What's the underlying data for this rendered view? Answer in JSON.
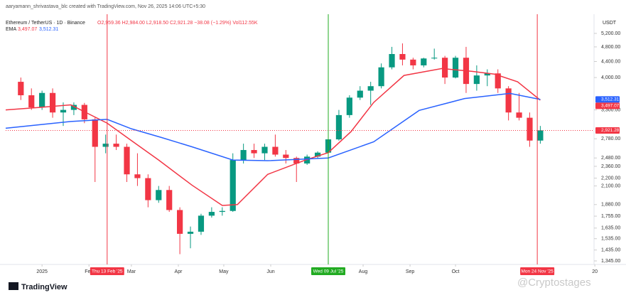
{
  "chart_data": {
    "type": "candlestick",
    "credit": "aaryamann_shrivastava_blc created with TradingView.com, Nov 26, 2025 14:06 UTC+5:30",
    "title": "Ethereum / TetherUS · 1D · Binance",
    "ohlc_text": "O2,959.36 H2,984.00 L2,918.50 C2,921.28 −38.08 (−1.29%) Vol112.55K",
    "indicator": "EMA",
    "currency": "USDT",
    "brand": "TradingView",
    "watermark": "@Cryptostages",
    "log_scale": true,
    "grid": false,
    "up_color": "#089981",
    "down_color": "#f23645",
    "xlim": [
      -23,
      365
    ],
    "ylim": [
      1317,
      5470
    ],
    "xticks": [
      {
        "value": 1,
        "label": "2025"
      },
      {
        "value": 32,
        "label": "Feb"
      },
      {
        "value": 60,
        "label": "Mar"
      },
      {
        "value": 91,
        "label": "Apr"
      },
      {
        "value": 121,
        "label": "May"
      },
      {
        "value": 152,
        "label": "Jun"
      },
      {
        "value": 213,
        "label": "Aug"
      },
      {
        "value": 244,
        "label": "Sep"
      },
      {
        "value": 274,
        "label": "Oct"
      },
      {
        "value": 366,
        "label": "20"
      }
    ],
    "yticks": [
      {
        "value": 5200,
        "label": "5,200.00"
      },
      {
        "value": 4800,
        "label": "4,800.00"
      },
      {
        "value": 4400,
        "label": "4,400.00"
      },
      {
        "value": 4000,
        "label": "4,000.00"
      },
      {
        "value": 3300,
        "label": "3,300.00"
      },
      {
        "value": 2780,
        "label": "2,780.00"
      },
      {
        "value": 2480,
        "label": "2,480.00"
      },
      {
        "value": 2360,
        "label": "2,360.00"
      },
      {
        "value": 2200,
        "label": "2,200.00"
      },
      {
        "value": 2100,
        "label": "2,100.00"
      },
      {
        "value": 1880,
        "label": "1,880.00"
      },
      {
        "value": 1755,
        "label": "1,755.00"
      },
      {
        "value": 1635,
        "label": "1,635.00"
      },
      {
        "value": 1535,
        "label": "1,535.00"
      },
      {
        "value": 1435,
        "label": "1,435.00"
      },
      {
        "value": 1345,
        "label": "1,345.00"
      }
    ],
    "candles": {
      "x": [
        -13,
        -6,
        1,
        8,
        15,
        22,
        29,
        36,
        43,
        50,
        57,
        64,
        71,
        78,
        85,
        92,
        99,
        106,
        113,
        120,
        127,
        134,
        141,
        148,
        155,
        162,
        169,
        176,
        183,
        190,
        197,
        204,
        211,
        218,
        225,
        232,
        239,
        246,
        253,
        260,
        267,
        274,
        281,
        288,
        295,
        302,
        309,
        316,
        323,
        330
      ],
      "open": [
        3900,
        3600,
        3350,
        3650,
        3250,
        3300,
        3400,
        3120,
        2650,
        2700,
        2650,
        2250,
        2200,
        1930,
        2050,
        1820,
        1580,
        1600,
        1760,
        1800,
        1810,
        2450,
        2600,
        2550,
        2650,
        2530,
        2480,
        2400,
        2500,
        2560,
        2770,
        3200,
        3550,
        3700,
        3800,
        4250,
        4600,
        4450,
        4300,
        4480,
        4500,
        4000,
        4500,
        3850,
        4050,
        4100,
        3750,
        3250,
        3150,
        2750
      ],
      "high": [
        4000,
        3750,
        3700,
        3750,
        3450,
        3450,
        3440,
        3150,
        2850,
        2850,
        2700,
        2550,
        2250,
        2100,
        2100,
        1850,
        1650,
        1780,
        1850,
        1850,
        2550,
        2700,
        2700,
        2700,
        2850,
        2600,
        2500,
        2530,
        2580,
        2800,
        3300,
        3600,
        3800,
        3900,
        4350,
        4800,
        4900,
        4500,
        4500,
        4750,
        4550,
        4550,
        4800,
        4300,
        4200,
        4200,
        3800,
        3650,
        3250,
        3000
      ],
      "low": [
        3500,
        3300,
        3300,
        3150,
        3000,
        3200,
        3050,
        2150,
        2550,
        2600,
        2150,
        2100,
        1850,
        1900,
        1800,
        1400,
        1450,
        1570,
        1740,
        1760,
        1800,
        2400,
        2480,
        2450,
        2500,
        2400,
        2150,
        2380,
        2470,
        2550,
        2750,
        3150,
        3500,
        3400,
        3750,
        4200,
        4300,
        4200,
        4250,
        4450,
        3850,
        3980,
        3650,
        3700,
        3800,
        3650,
        3100,
        3100,
        2650,
        2700
      ],
      "close": [
        3600,
        3350,
        3650,
        3250,
        3300,
        3400,
        3120,
        2650,
        2700,
        2650,
        2250,
        2200,
        1930,
        2050,
        1820,
        1580,
        1600,
        1760,
        1800,
        1810,
        2450,
        2600,
        2550,
        2650,
        2530,
        2480,
        2400,
        2500,
        2560,
        2770,
        3200,
        3550,
        3700,
        3800,
        4250,
        4600,
        4450,
        4300,
        4480,
        4500,
        4000,
        4500,
        3850,
        4050,
        4100,
        3750,
        3250,
        3150,
        2750,
        2921.28
      ]
    },
    "ema": [
      {
        "color": "#f23645",
        "x": [
          -23,
          0,
          20,
          44,
          60,
          78,
          100,
          120,
          130,
          150,
          175,
          190,
          205,
          220,
          240,
          265,
          285,
          300,
          315,
          330
        ],
        "values": [
          3300,
          3350,
          3400,
          3050,
          2750,
          2450,
          2110,
          1870,
          1880,
          2250,
          2450,
          2560,
          2900,
          3450,
          4050,
          4220,
          4150,
          4080,
          3900,
          3497.07
        ]
      },
      {
        "color": "#2962ff",
        "x": [
          -23,
          20,
          44,
          60,
          80,
          100,
          127,
          150,
          190,
          220,
          250,
          280,
          310,
          330
        ],
        "values": [
          2960,
          3080,
          3120,
          2950,
          2800,
          2650,
          2450,
          2440,
          2480,
          2730,
          3290,
          3530,
          3640,
          3512.31
        ]
      }
    ],
    "ema_labels": [
      "3,497.07",
      "3,512.31"
    ],
    "price_tags": [
      {
        "value": 3512.31,
        "label": "3,512.31",
        "color": "#2962ff"
      },
      {
        "value": 3497.07,
        "label": "3,497.07",
        "color": "#f23645"
      },
      {
        "value": 2921.28,
        "label": "2,921.28",
        "color": "#f23645"
      }
    ],
    "markers": [
      {
        "x": 44,
        "label": "Thu 13 Feb '25",
        "color": "#f23645"
      },
      {
        "x": 190,
        "label": "Wed 09 Jul '25",
        "color": "#22ab22"
      },
      {
        "x": 328,
        "label": "Mon 24 Nov '25",
        "color": "#f23645"
      }
    ]
  }
}
